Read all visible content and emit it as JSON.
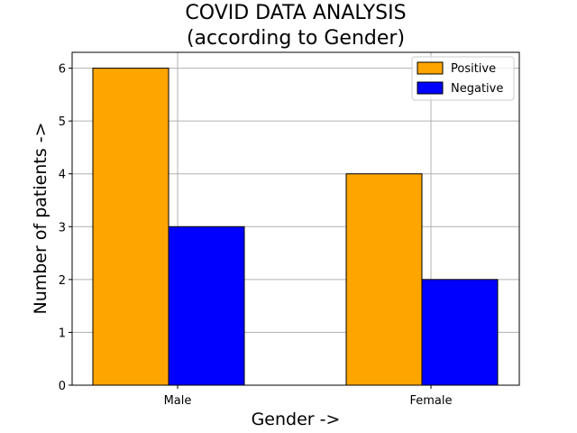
{
  "chart_data": {
    "type": "bar",
    "title": "COVID DATA ANALYSIS",
    "subtitle": "(according to Gender)",
    "xlabel": "Gender ->",
    "ylabel": "Number of patients ->",
    "categories": [
      "Male",
      "Female"
    ],
    "series": [
      {
        "name": "Positive",
        "values": [
          6,
          4
        ],
        "color": "#ffa500"
      },
      {
        "name": "Negative",
        "values": [
          3,
          2
        ],
        "color": "#0000ff"
      }
    ],
    "ylim": [
      0,
      6.3
    ],
    "yticks": [
      "0",
      "1",
      "2",
      "3",
      "4",
      "5",
      "6"
    ],
    "grid": true,
    "legend_position": "top-right",
    "bar_edge_color": "#000000"
  }
}
